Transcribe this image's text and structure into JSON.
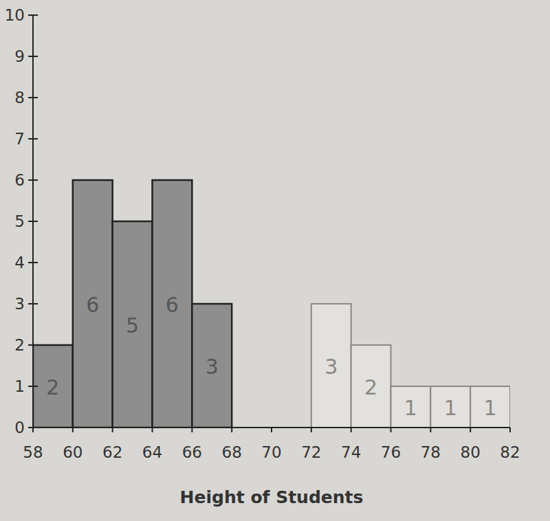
{
  "chart_data": {
    "type": "histogram",
    "x_label": "Height of Students",
    "bins": [
      58,
      60,
      62,
      64,
      66,
      68,
      70,
      72,
      74,
      76,
      78,
      80,
      82
    ],
    "values": [
      2,
      6,
      5,
      6,
      3,
      0,
      0,
      3,
      2,
      1,
      1,
      1
    ],
    "colors": [
      "#8e8e8e",
      "#8e8e8e",
      "#8e8e8e",
      "#8e8e8e",
      "#8e8e8e",
      "#8e8e8e",
      "#8e8e8e",
      "#e3e1dd",
      "#e3e1dd",
      "#e3e1dd",
      "#e3e1dd",
      "#e3e1dd"
    ],
    "xlim": [
      58,
      82
    ],
    "xticks": [
      58,
      60,
      62,
      64,
      66,
      68,
      70,
      72,
      74,
      76,
      78,
      80,
      82
    ],
    "ylim": [
      0,
      10
    ],
    "yticks": [
      0,
      1,
      2,
      3,
      4,
      5,
      6,
      7,
      8,
      9,
      10
    ],
    "data_labels": true,
    "grid": false
  }
}
